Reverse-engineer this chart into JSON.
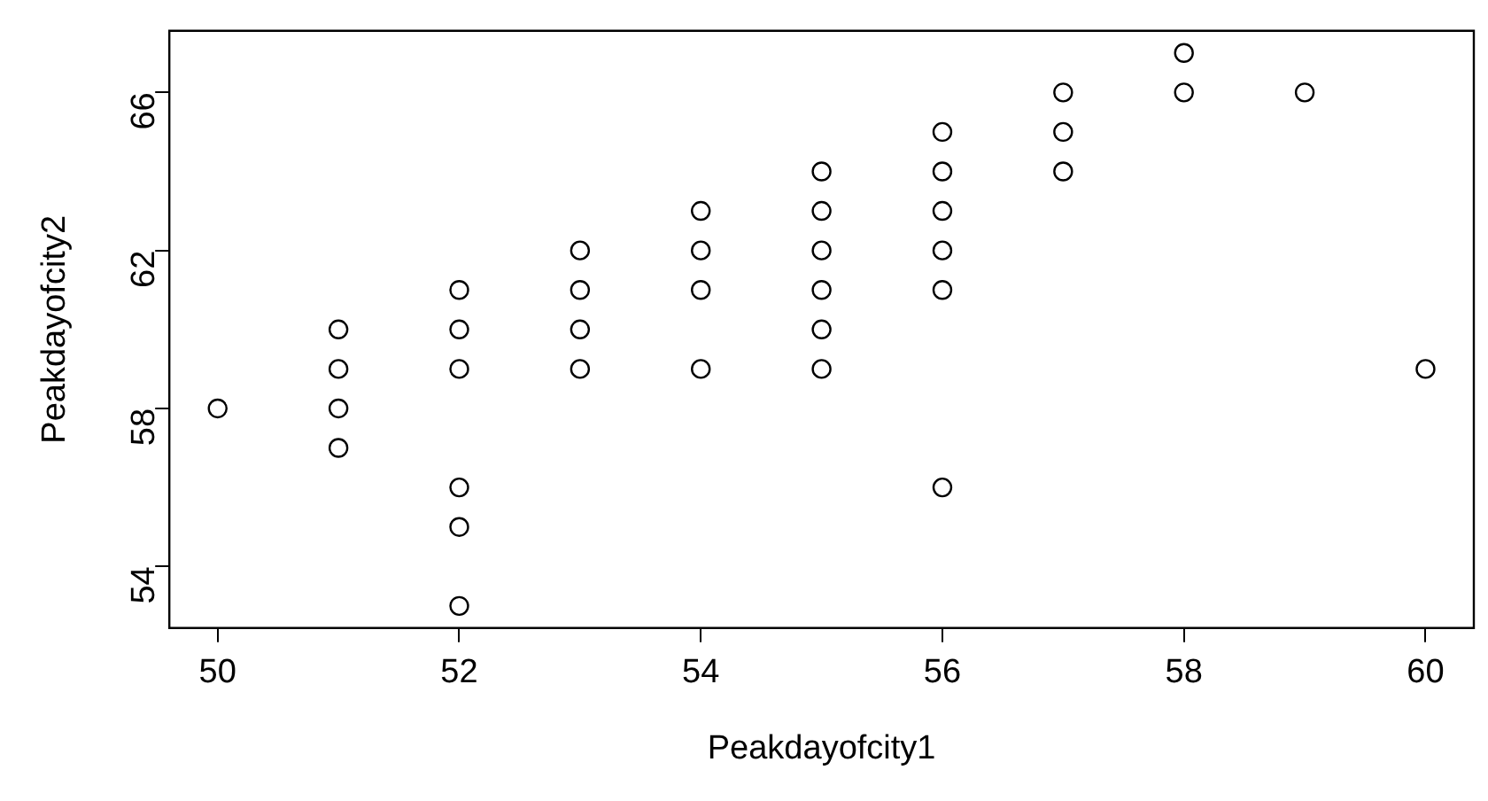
{
  "chart_data": {
    "type": "scatter",
    "xlabel": "Peakdayofcity1",
    "ylabel": "Peakdayofcity2",
    "x": [
      50,
      51,
      51,
      51,
      51,
      52,
      52,
      52,
      52,
      52,
      52,
      53,
      53,
      53,
      53,
      54,
      54,
      54,
      54,
      55,
      55,
      55,
      55,
      55,
      55,
      56,
      56,
      56,
      56,
      56,
      56,
      57,
      57,
      57,
      58,
      58,
      59,
      60
    ],
    "values": [
      58,
      60,
      59,
      58,
      57,
      61,
      60,
      59,
      56,
      55,
      53,
      62,
      61,
      60,
      59,
      63,
      62,
      61,
      59,
      64,
      63,
      62,
      61,
      60,
      59,
      65,
      64,
      63,
      62,
      61,
      56,
      66,
      65,
      64,
      67,
      66,
      66,
      59
    ],
    "color": "#000000",
    "marker": "circle",
    "grid": false,
    "legend": false,
    "xlim": [
      49.6,
      60.4
    ],
    "ylim": [
      52.44,
      67.56
    ],
    "xticks": [
      50,
      52,
      54,
      56,
      58,
      60
    ],
    "yticks": [
      54,
      58,
      62,
      66
    ]
  }
}
